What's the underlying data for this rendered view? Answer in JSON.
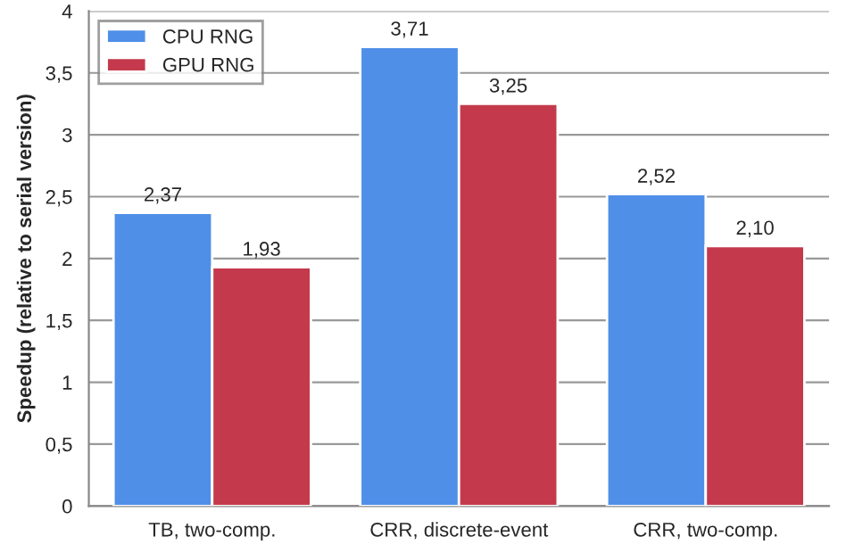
{
  "chart_data": {
    "type": "bar",
    "ylabel": "Speedup (relative to serial version)",
    "categories": [
      "TB, two-comp.",
      "CRR, discrete-event",
      "CRR, two-comp."
    ],
    "series": [
      {
        "name": "CPU RNG",
        "color": "#4f8fe8",
        "values": [
          2.37,
          3.71,
          2.52
        ],
        "value_labels": [
          "2,37",
          "3,71",
          "2,52"
        ]
      },
      {
        "name": "GPU RNG",
        "color": "#c43a4c",
        "values": [
          1.93,
          3.25,
          2.1
        ],
        "value_labels": [
          "1,93",
          "3,25",
          "2,10"
        ]
      }
    ],
    "ylim": [
      0,
      4
    ],
    "yticks": [
      0,
      {
        "value": 0.5,
        "label": "0,5"
      },
      1,
      {
        "value": 1.5,
        "label": "1,5"
      },
      2,
      {
        "value": 2.5,
        "label": "2,5"
      },
      3,
      {
        "value": 3.5,
        "label": "3,5"
      },
      4
    ],
    "grid": "y",
    "legend": "top left"
  }
}
